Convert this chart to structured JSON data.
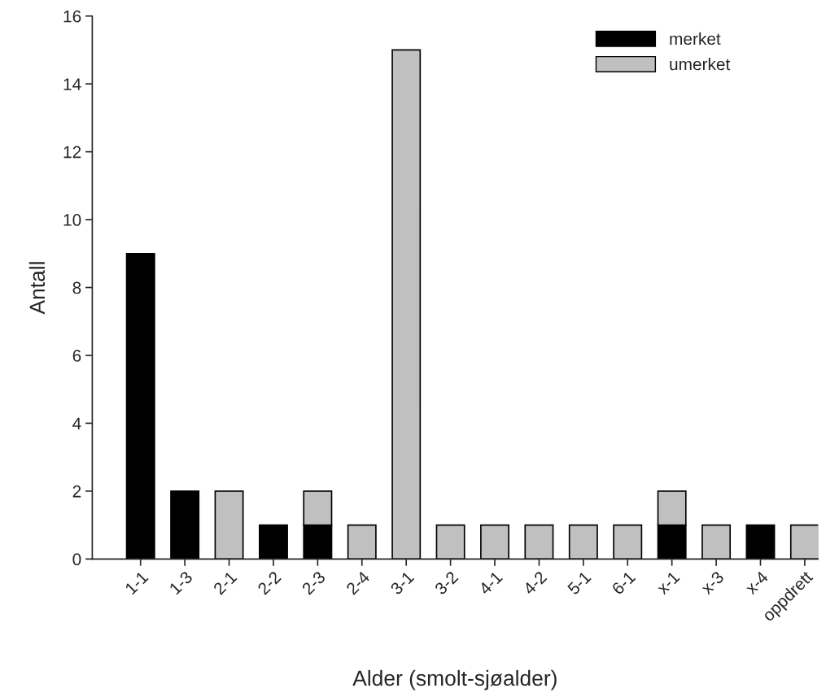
{
  "chart_data": {
    "type": "bar",
    "stacked": true,
    "xlabel": "Alder (smolt-sjøalder)",
    "ylabel": "Antall",
    "categories": [
      "1-1",
      "1-3",
      "2-1",
      "2-2",
      "2-3",
      "2-4",
      "3-1",
      "3-2",
      "4-1",
      "4-2",
      "5-1",
      "6-1",
      "x-1",
      "x-3",
      "x-4",
      "oppdrett"
    ],
    "series": [
      {
        "name": "merket",
        "color": "#000000",
        "values": [
          9,
          2,
          null,
          1,
          1,
          null,
          null,
          null,
          null,
          null,
          null,
          null,
          1,
          null,
          1,
          null
        ]
      },
      {
        "name": "umerket",
        "color": "#c0c0c0",
        "values": [
          null,
          null,
          2,
          null,
          1,
          1,
          15,
          1,
          1,
          1,
          1,
          1,
          1,
          1,
          null,
          1
        ]
      }
    ],
    "ylim": [
      0,
      16
    ],
    "yticks": [
      0,
      2,
      4,
      6,
      8,
      10,
      12,
      14,
      16
    ],
    "grid": false,
    "legend": "top right"
  }
}
